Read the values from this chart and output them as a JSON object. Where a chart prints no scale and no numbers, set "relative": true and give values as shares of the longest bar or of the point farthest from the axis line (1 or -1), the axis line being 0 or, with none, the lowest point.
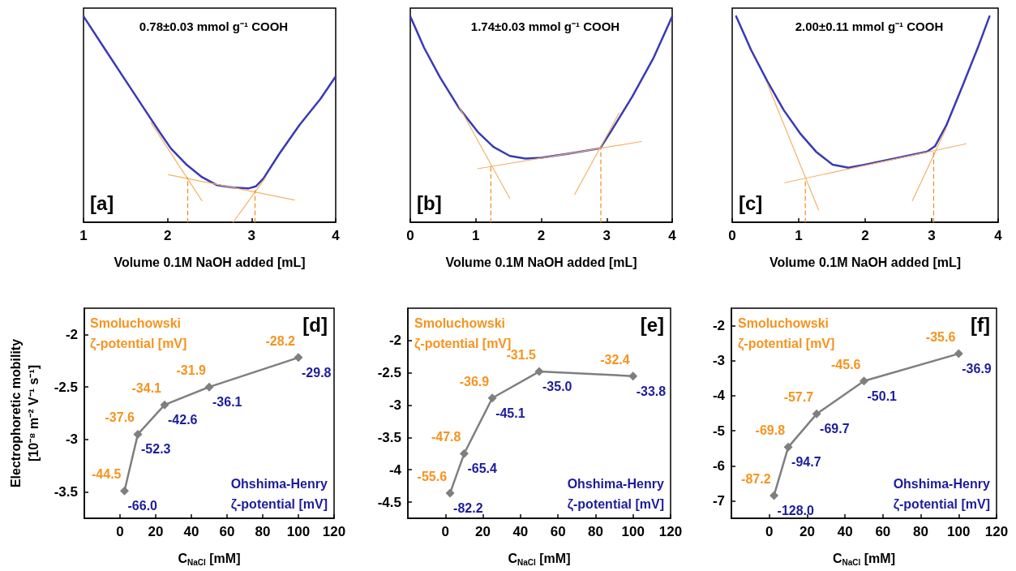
{
  "chart_data": [
    {
      "type": "line",
      "relative": true,
      "title": "0.78±0.03 mmol g⁻¹ COOH",
      "xlabel": "Volume 0.1M NaOH added [mL]",
      "xlim": [
        1,
        4
      ],
      "xticks": [
        1,
        2,
        3,
        4
      ],
      "marker": "none",
      "annotations": [
        "[a]"
      ],
      "series": [
        {
          "color": "#3a3ab4",
          "x": [
            1.0,
            1.245,
            1.49,
            1.735,
            1.89,
            2.04,
            2.22,
            2.41,
            2.59,
            2.78,
            2.96,
            3.05,
            3.14,
            3.33,
            3.57,
            3.82,
            4.0
          ],
          "values": [
            1.0,
            0.847,
            0.695,
            0.543,
            0.447,
            0.358,
            0.282,
            0.219,
            0.18,
            0.168,
            0.164,
            0.174,
            0.212,
            0.333,
            0.473,
            0.6,
            0.708
          ]
        },
        {
          "type": "line",
          "color": "#f5b266",
          "x": [
            1.8,
            2.41
          ],
          "values": [
            0.485,
            0.104
          ]
        },
        {
          "type": "line",
          "color": "#f5b266",
          "x": [
            2.01,
            3.51
          ],
          "values": [
            0.231,
            0.108
          ]
        },
        {
          "type": "line",
          "color": "#f5b266",
          "x": [
            2.78,
            3.17
          ],
          "values": [
            0.0,
            0.219
          ]
        },
        {
          "type": "line",
          "color": "#f08a24",
          "line_style": "dashed",
          "x": [
            2.24,
            2.24
          ],
          "values": [
            0.0,
            0.216
          ]
        },
        {
          "type": "line",
          "color": "#f08a24",
          "line_style": "dashed",
          "x": [
            3.04,
            3.04
          ],
          "values": [
            0.0,
            0.155
          ]
        }
      ]
    },
    {
      "type": "line",
      "relative": true,
      "title": "1.74±0.03 mmol g⁻¹ COOH",
      "xlabel": "Volume 0.1M NaOH added [mL]",
      "xlim": [
        0,
        4
      ],
      "xticks": [
        0,
        1,
        2,
        3,
        4
      ],
      "marker": "none",
      "annotations": [
        "[b]"
      ],
      "series": [
        {
          "color": "#3a3ab4",
          "x": [
            0.0,
            0.21,
            0.456,
            0.74,
            1.03,
            1.27,
            1.52,
            1.76,
            2.0,
            2.41,
            2.9,
            3.06,
            3.39,
            3.71,
            4.0
          ],
          "values": [
            1.0,
            0.848,
            0.703,
            0.557,
            0.439,
            0.366,
            0.322,
            0.309,
            0.313,
            0.333,
            0.359,
            0.439,
            0.61,
            0.795,
            1.0
          ]
        },
        {
          "type": "line",
          "color": "#f5b266",
          "x": [
            0.74,
            1.52
          ],
          "values": [
            0.564,
            0.115
          ]
        },
        {
          "type": "line",
          "color": "#f5b266",
          "x": [
            1.03,
            3.53
          ],
          "values": [
            0.26,
            0.392
          ]
        },
        {
          "type": "line",
          "color": "#f5b266",
          "x": [
            2.51,
            3.19
          ],
          "values": [
            0.135,
            0.531
          ]
        },
        {
          "type": "line",
          "color": "#f08a24",
          "line_style": "dashed",
          "x": [
            1.23,
            1.23
          ],
          "values": [
            0.0,
            0.273
          ]
        },
        {
          "type": "line",
          "color": "#f08a24",
          "line_style": "dashed",
          "x": [
            2.91,
            2.91
          ],
          "values": [
            0.0,
            0.362
          ]
        }
      ]
    },
    {
      "type": "line",
      "relative": true,
      "title": "2.00±0.11 mmol g⁻¹ COOH",
      "xlabel": "Volume 0.1M NaOH added [mL]",
      "xlim": [
        0,
        4
      ],
      "xticks": [
        0,
        1,
        2,
        3,
        4
      ],
      "marker": "none",
      "annotations": [
        "[c]"
      ],
      "series": [
        {
          "color": "#3a3ab4",
          "x": [
            0.06,
            0.285,
            0.53,
            0.774,
            1.02,
            1.26,
            1.51,
            1.75,
            2.0,
            2.48,
            2.93,
            3.05,
            3.22,
            3.46,
            3.71,
            3.87
          ],
          "values": [
            1.0,
            0.836,
            0.684,
            0.545,
            0.432,
            0.343,
            0.28,
            0.265,
            0.28,
            0.312,
            0.343,
            0.369,
            0.47,
            0.659,
            0.861,
            1.0
          ]
        },
        {
          "type": "line",
          "color": "#f5b266",
          "x": [
            0.53,
            1.3
          ],
          "values": [
            0.672,
            0.059
          ]
        },
        {
          "type": "line",
          "color": "#f5b266",
          "x": [
            0.79,
            3.52
          ],
          "values": [
            0.192,
            0.381
          ]
        },
        {
          "type": "line",
          "color": "#f5b266",
          "x": [
            2.71,
            3.22
          ],
          "values": [
            0.104,
            0.457
          ]
        },
        {
          "type": "line",
          "color": "#f08a24",
          "line_style": "dashed",
          "x": [
            1.1,
            1.1
          ],
          "values": [
            0.0,
            0.211
          ]
        },
        {
          "type": "line",
          "color": "#f08a24",
          "line_style": "dashed",
          "x": [
            3.03,
            3.03
          ],
          "values": [
            0.0,
            0.35
          ]
        }
      ]
    },
    {
      "type": "line",
      "xlabel": "C$_{NaCl}$ [mM]",
      "ylabel": "Electrophoretic mobility\n[10⁻⁸ m⁻² V⁻¹ s⁻¹]",
      "x": [
        2.5,
        10,
        25,
        50,
        100
      ],
      "xlim": [
        -20,
        120
      ],
      "xticks": [
        0,
        20,
        40,
        60,
        80,
        100,
        120
      ],
      "ylim": [
        -3.75,
        -1.75
      ],
      "yticks": [
        -3.5,
        -3.0,
        -2.5,
        -2.0
      ],
      "marker": "diamond",
      "annotations": [
        "[d]",
        "Smoluchowski\nζ-potential [mV]",
        {
          "text": "-44.5",
          "x": 2.5,
          "y": -3.49
        },
        {
          "text": "-37.6",
          "x": 10,
          "y": -2.95
        },
        {
          "text": "-34.1",
          "x": 25,
          "y": -2.67
        },
        {
          "text": "-31.9",
          "x": 50,
          "y": -2.5
        },
        {
          "text": "-28.2",
          "x": 100,
          "y": -2.22
        },
        "Ohshima-Henry\nζ-potential [mV]",
        {
          "text": "-66.0",
          "x": 2.5,
          "y": -3.49
        },
        {
          "text": "-52.3",
          "x": 10,
          "y": -2.95
        },
        {
          "text": "-42.6",
          "x": 25,
          "y": -2.67
        },
        {
          "text": "-36.1",
          "x": 50,
          "y": -2.5
        },
        {
          "text": "-29.8",
          "x": 100,
          "y": -2.22
        }
      ],
      "series": [
        {
          "color": "#7f7f7f",
          "values": [
            -3.49,
            -2.95,
            -2.67,
            -2.5,
            -2.22
          ]
        }
      ]
    },
    {
      "type": "line",
      "xlabel": "C$_{NaCl}$ [mM]",
      "x": [
        2.5,
        10,
        25,
        50,
        100
      ],
      "xlim": [
        -20,
        120
      ],
      "xticks": [
        0,
        20,
        40,
        60,
        80,
        100,
        120
      ],
      "ylim": [
        -4.75,
        -1.5
      ],
      "yticks": [
        -4.5,
        -4.0,
        -3.5,
        -3.0,
        -2.5,
        -2.0
      ],
      "marker": "diamond",
      "annotations": [
        "[e]",
        "Smoluchowski\nζ-potential [mV]",
        {
          "text": "-55.6",
          "x": 2.5,
          "y": -4.36
        },
        {
          "text": "-47.8",
          "x": 10,
          "y": -3.75
        },
        {
          "text": "-36.9",
          "x": 25,
          "y": -2.89
        },
        {
          "text": "-31.5",
          "x": 50,
          "y": -2.48
        },
        {
          "text": "-32.4",
          "x": 100,
          "y": -2.55
        },
        "Ohshima-Henry\nζ-potential [mV]",
        {
          "text": "-82.2",
          "x": 2.5,
          "y": -4.36
        },
        {
          "text": "-65.4",
          "x": 10,
          "y": -3.75
        },
        {
          "text": "-45.1",
          "x": 25,
          "y": -2.89
        },
        {
          "text": "-35.0",
          "x": 50,
          "y": -2.48
        },
        {
          "text": "-33.8",
          "x": 100,
          "y": -2.55
        }
      ],
      "series": [
        {
          "color": "#7f7f7f",
          "values": [
            -4.36,
            -3.75,
            -2.89,
            -2.48,
            -2.55
          ]
        }
      ]
    },
    {
      "type": "line",
      "xlabel": "C$_{NaCl}$ [mM]",
      "x": [
        2.5,
        10,
        25,
        50,
        100
      ],
      "xlim": [
        -20,
        120
      ],
      "xticks": [
        0,
        20,
        40,
        60,
        80,
        100,
        120
      ],
      "ylim": [
        -7.5,
        -1.5
      ],
      "yticks": [
        -7,
        -6,
        -5,
        -4,
        -3,
        -2
      ],
      "marker": "diamond",
      "annotations": [
        "[f]",
        "Smoluchowski\nζ-potential [mV]",
        {
          "text": "-87.2",
          "x": 2.5,
          "y": -6.85
        },
        {
          "text": "-69.8",
          "x": 10,
          "y": -5.47
        },
        {
          "text": "-57.7",
          "x": 25,
          "y": -4.52
        },
        {
          "text": "-45.6",
          "x": 50,
          "y": -3.58
        },
        {
          "text": "-35.6",
          "x": 100,
          "y": -2.8
        },
        "Ohshima-Henry\nζ-potential [mV]",
        {
          "text": "-128.0",
          "x": 2.5,
          "y": -6.85
        },
        {
          "text": "-94.7",
          "x": 10,
          "y": -5.47
        },
        {
          "text": "-69.7",
          "x": 25,
          "y": -4.52
        },
        {
          "text": "-50.1",
          "x": 50,
          "y": -3.58
        },
        {
          "text": "-36.9",
          "x": 100,
          "y": -2.8
        }
      ],
      "series": [
        {
          "color": "#7f7f7f",
          "values": [
            -6.85,
            -5.47,
            -4.52,
            -3.58,
            -2.8
          ]
        }
      ]
    }
  ]
}
